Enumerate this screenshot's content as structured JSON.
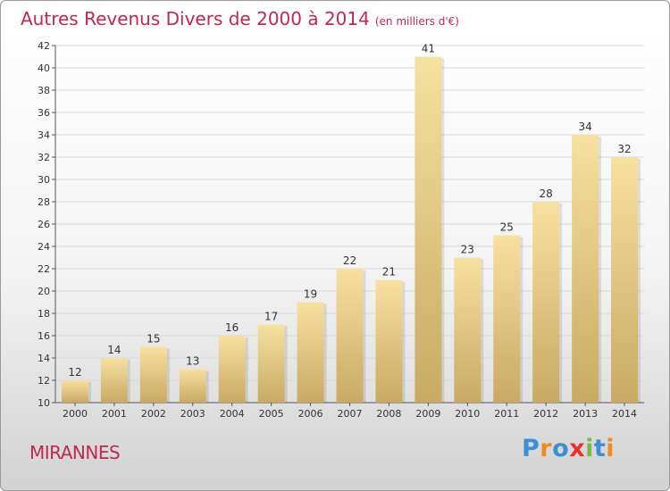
{
  "title": "Autres Revenus Divers de 2000 à 2014",
  "unit": "(en milliers d'€)",
  "commune": "MIRANNES",
  "logo": {
    "letters": [
      "P",
      "r",
      "o",
      "x",
      "i",
      "t",
      "i"
    ],
    "colors": [
      "#3d8fd4",
      "#f08a1c",
      "#3d8fd4",
      "#e8312f",
      "#7ab648",
      "#3d8fd4",
      "#f08a1c"
    ]
  },
  "colors": {
    "title": "#c0284e",
    "bar_light": "#f7e1a0",
    "bar_dark": "#c8aa62",
    "grid": "#d8d8d8"
  },
  "chart_data": {
    "type": "bar",
    "categories": [
      "2000",
      "2001",
      "2002",
      "2003",
      "2004",
      "2005",
      "2006",
      "2007",
      "2008",
      "2009",
      "2010",
      "2011",
      "2012",
      "2013",
      "2014"
    ],
    "values": [
      12,
      14,
      15,
      13,
      16,
      17,
      19,
      22,
      21,
      41,
      23,
      25,
      28,
      34,
      32
    ],
    "ylim": [
      10,
      42
    ],
    "yticks": [
      10,
      12,
      14,
      16,
      18,
      20,
      22,
      24,
      26,
      28,
      30,
      32,
      34,
      36,
      38,
      40,
      42
    ],
    "grid": true,
    "xlabel": "",
    "ylabel": ""
  }
}
